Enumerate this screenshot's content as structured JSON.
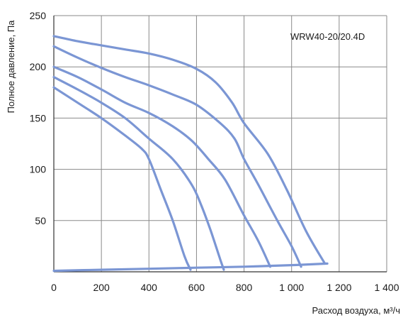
{
  "chart_data": {
    "type": "line",
    "title": "",
    "annotation": "WRW40-20/20.4D",
    "xlabel": "Расход воздуха, м³/ч",
    "ylabel": "Полное давление, Па",
    "xlim": [
      0,
      1400
    ],
    "ylim": [
      0,
      250
    ],
    "x_ticks": [
      {
        "value": 0,
        "label": "0"
      },
      {
        "value": 200,
        "label": "200"
      },
      {
        "value": 400,
        "label": "400"
      },
      {
        "value": 600,
        "label": "600"
      },
      {
        "value": 800,
        "label": "800"
      },
      {
        "value": 1000,
        "label": "1 000"
      },
      {
        "value": 1200,
        "label": "1 200"
      },
      {
        "value": 1400,
        "label": "1 400"
      }
    ],
    "y_ticks": [
      {
        "value": 50,
        "label": "50"
      },
      {
        "value": 100,
        "label": "100"
      },
      {
        "value": 150,
        "label": "150"
      },
      {
        "value": 200,
        "label": "200"
      },
      {
        "value": 250,
        "label": "250"
      }
    ],
    "grid": true,
    "line_color": "#7b96d4",
    "series": [
      {
        "x": [
          0,
          100,
          200,
          300,
          370,
          400,
          450,
          500,
          550,
          575
        ],
        "y": [
          180,
          165,
          150,
          133,
          120,
          110,
          80,
          50,
          15,
          2
        ]
      },
      {
        "x": [
          0,
          100,
          200,
          300,
          400,
          500,
          580,
          620,
          660,
          700,
          715
        ],
        "y": [
          190,
          178,
          165,
          150,
          130,
          110,
          85,
          65,
          40,
          12,
          2
        ]
      },
      {
        "x": [
          0,
          100,
          200,
          300,
          400,
          500,
          580,
          650,
          720,
          800,
          860,
          910
        ],
        "y": [
          200,
          190,
          178,
          165,
          155,
          142,
          128,
          110,
          90,
          55,
          30,
          5
        ]
      },
      {
        "x": [
          0,
          100,
          200,
          300,
          400,
          500,
          600,
          700,
          760,
          800,
          860,
          940,
          1000,
          1040
        ],
        "y": [
          220,
          209,
          199,
          190,
          182,
          173,
          163,
          145,
          130,
          110,
          85,
          50,
          25,
          5
        ]
      },
      {
        "x": [
          0,
          100,
          200,
          300,
          400,
          500,
          600,
          680,
          750,
          800,
          900,
          980,
          1060,
          1140
        ],
        "y": [
          230,
          225,
          221,
          217,
          213,
          207,
          198,
          185,
          165,
          145,
          115,
          80,
          40,
          8
        ]
      },
      {
        "x": [
          0,
          200,
          400,
          600,
          800,
          1000,
          1150
        ],
        "y": [
          1,
          2,
          3,
          4,
          5,
          6.5,
          8
        ]
      }
    ]
  }
}
